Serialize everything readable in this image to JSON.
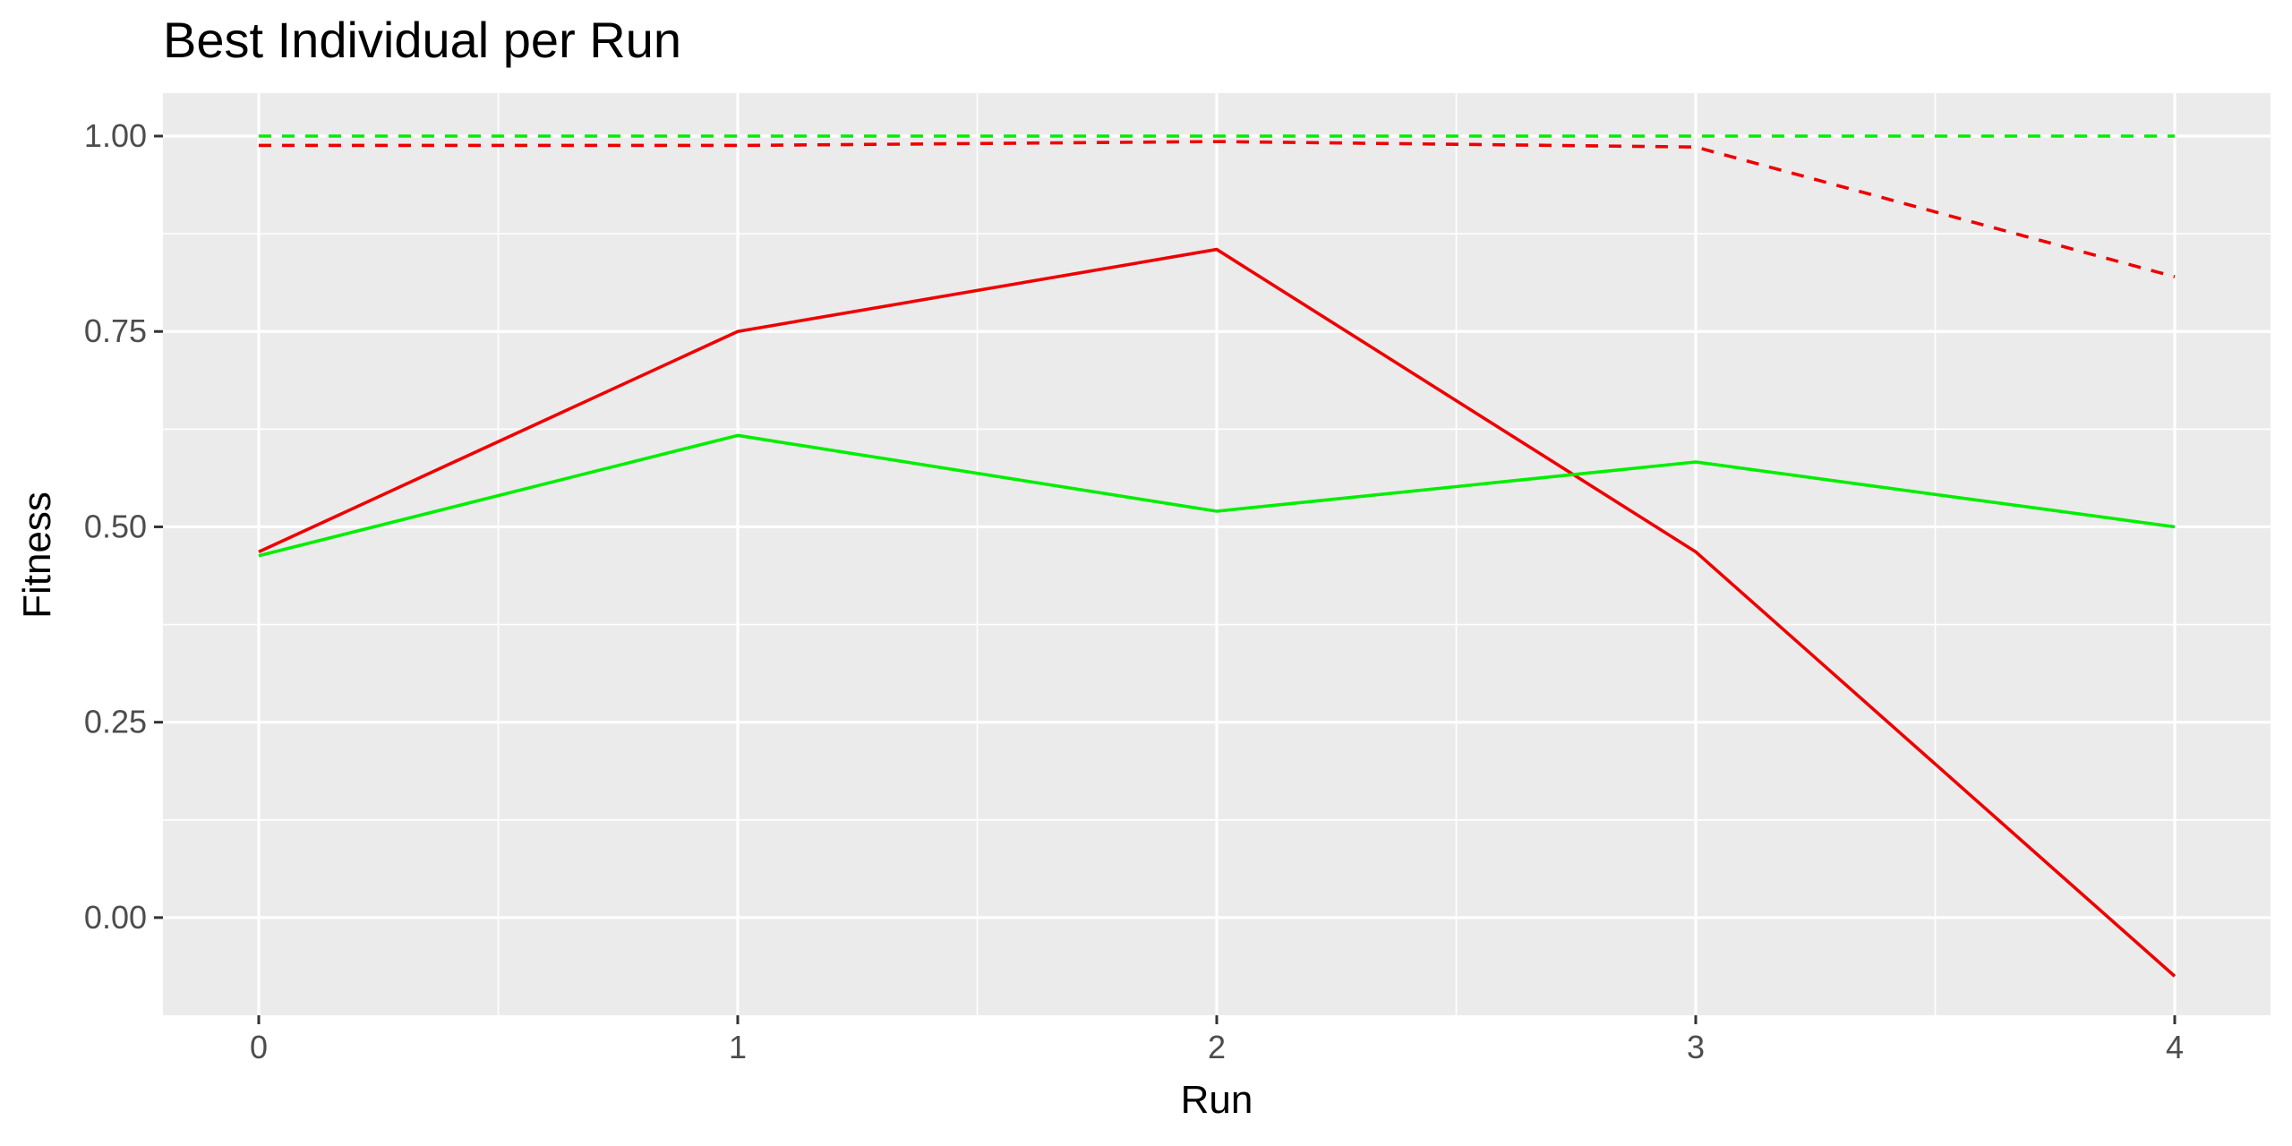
{
  "chart_data": {
    "type": "line",
    "title": "Best Individual per Run",
    "xlabel": "Run",
    "ylabel": "Fitness",
    "x": [
      0,
      1,
      2,
      3,
      4
    ],
    "xlim": [
      -0.2,
      4.2
    ],
    "ylim": [
      -0.125,
      1.055
    ],
    "x_ticks": [
      0,
      1,
      2,
      3,
      4
    ],
    "y_ticks": [
      0.0,
      0.25,
      0.5,
      0.75,
      1.0
    ],
    "x_tick_labels": [
      "0",
      "1",
      "2",
      "3",
      "4"
    ],
    "y_tick_labels": [
      "0.00",
      "0.25",
      "0.50",
      "0.75",
      "1.00"
    ],
    "grid": true,
    "legend": "none",
    "background": "#ebebeb",
    "series": [
      {
        "color": "#00ee00",
        "dash": "dashed",
        "values": [
          1.0,
          1.0,
          1.0,
          1.0,
          1.0
        ]
      },
      {
        "color": "#ee0000",
        "dash": "dashed",
        "values": [
          0.988,
          0.988,
          0.993,
          0.986,
          0.82
        ]
      },
      {
        "color": "#ee0000",
        "dash": "solid",
        "values": [
          0.468,
          0.75,
          0.855,
          0.468,
          -0.075
        ]
      },
      {
        "color": "#00ee00",
        "dash": "solid",
        "values": [
          0.463,
          0.617,
          0.52,
          0.583,
          0.5
        ]
      }
    ]
  }
}
